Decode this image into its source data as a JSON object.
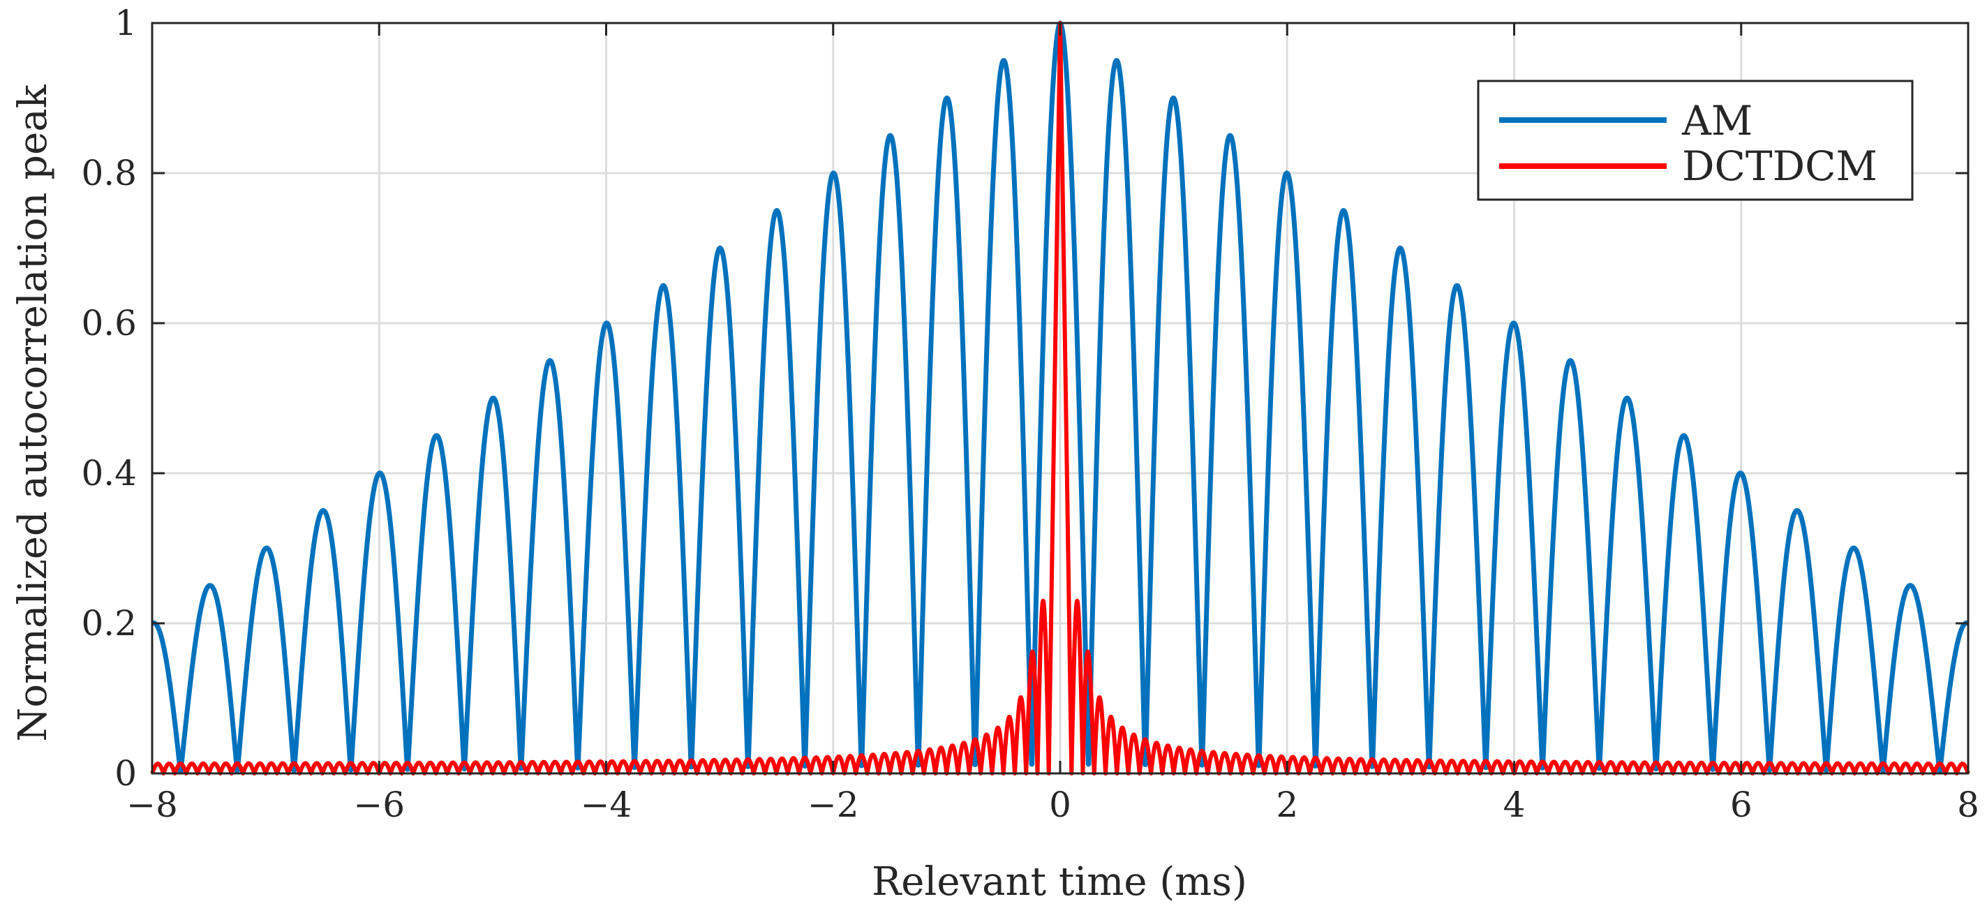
{
  "chart_data": {
    "type": "line",
    "title": "",
    "xlabel": "Relevant time (ms)",
    "ylabel": "Normalized autocorrelation peak",
    "xlim": [
      -8,
      8
    ],
    "ylim": [
      0,
      1
    ],
    "xticks": [
      -8,
      -6,
      -4,
      -2,
      0,
      2,
      4,
      6,
      8
    ],
    "yticks": [
      0,
      0.2,
      0.4,
      0.6,
      0.8,
      1
    ],
    "xtick_labels": [
      "−8",
      "−6",
      "−4",
      "−2",
      "0",
      "2",
      "4",
      "6",
      "8"
    ],
    "ytick_labels": [
      "0",
      "0.2",
      "0.4",
      "0.6",
      "0.8",
      "1"
    ],
    "grid": true,
    "legend_position": "top-right",
    "series": [
      {
        "name": "AM",
        "color": "#0072bd",
        "description": "Triangular envelope 1 - |t|/10 modulated by |cos(2*pi*t)|; lobes every 0.5 ms",
        "envelope_slope": 0.1,
        "lobe_spacing_ms": 0.5,
        "peaks": [
          {
            "x": -8.0,
            "y": 0.21
          },
          {
            "x": -7.5,
            "y": 0.26
          },
          {
            "x": -7.0,
            "y": 0.31
          },
          {
            "x": -6.5,
            "y": 0.36
          },
          {
            "x": -6.0,
            "y": 0.41
          },
          {
            "x": -5.5,
            "y": 0.46
          },
          {
            "x": -5.0,
            "y": 0.51
          },
          {
            "x": -4.5,
            "y": 0.56
          },
          {
            "x": -4.0,
            "y": 0.61
          },
          {
            "x": -3.5,
            "y": 0.66
          },
          {
            "x": -3.0,
            "y": 0.71
          },
          {
            "x": -2.5,
            "y": 0.76
          },
          {
            "x": -2.0,
            "y": 0.81
          },
          {
            "x": -1.5,
            "y": 0.86
          },
          {
            "x": -1.0,
            "y": 0.91
          },
          {
            "x": -0.5,
            "y": 0.96
          },
          {
            "x": 0.0,
            "y": 1.0
          },
          {
            "x": 0.5,
            "y": 0.96
          },
          {
            "x": 1.0,
            "y": 0.91
          },
          {
            "x": 1.5,
            "y": 0.86
          },
          {
            "x": 2.0,
            "y": 0.81
          },
          {
            "x": 2.5,
            "y": 0.76
          },
          {
            "x": 3.0,
            "y": 0.71
          },
          {
            "x": 3.5,
            "y": 0.66
          },
          {
            "x": 4.0,
            "y": 0.61
          },
          {
            "x": 4.5,
            "y": 0.56
          },
          {
            "x": 5.0,
            "y": 0.51
          },
          {
            "x": 5.5,
            "y": 0.46
          },
          {
            "x": 6.0,
            "y": 0.41
          },
          {
            "x": 6.5,
            "y": 0.36
          },
          {
            "x": 7.0,
            "y": 0.31
          },
          {
            "x": 7.5,
            "y": 0.26
          },
          {
            "x": 8.0,
            "y": 0.21
          }
        ]
      },
      {
        "name": "DCTDCM",
        "color": "#ff0000",
        "description": "Sharp main peak at 0 with rapidly oscillating, decaying sidelobes",
        "main_peak": {
          "x": 0.0,
          "y": 1.0
        },
        "first_sidelobes": [
          {
            "x": -0.2,
            "y": 0.22
          },
          {
            "x": 0.2,
            "y": 0.22
          }
        ],
        "sidelobe_period_ms": 0.1,
        "sidelobe_envelope_at_1ms": 0.07,
        "far_level": 0.01
      }
    ]
  }
}
